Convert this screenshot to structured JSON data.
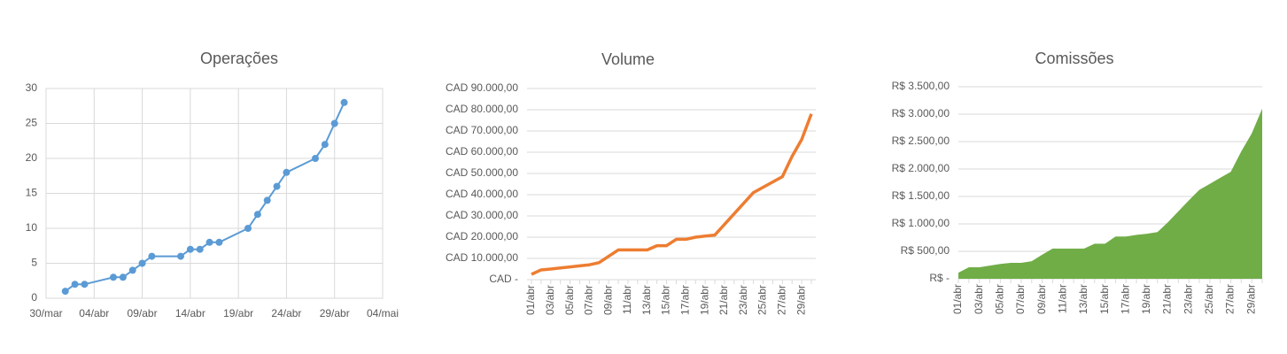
{
  "chart_data": [
    {
      "type": "line",
      "title": "Operações",
      "markers": true,
      "color": "#5b9bd5",
      "grid": true,
      "x": [
        "04-01",
        "04-02",
        "04-03",
        "04-06",
        "04-07",
        "04-08",
        "04-09",
        "04-10",
        "04-13",
        "04-14",
        "04-15",
        "04-16",
        "04-17",
        "04-20",
        "04-21",
        "04-22",
        "04-23",
        "04-24",
        "04-27",
        "04-28",
        "04-29",
        "04-30"
      ],
      "values": [
        1,
        2,
        2,
        3,
        3,
        4,
        5,
        6,
        6,
        7,
        7,
        8,
        8,
        10,
        12,
        14,
        16,
        18,
        20,
        22,
        25,
        28
      ],
      "xlim": [
        "03-30",
        "05-04"
      ],
      "xticks": [
        {
          "value": "03-30",
          "label": "30/mar"
        },
        {
          "value": "04-04",
          "label": "04/abr"
        },
        {
          "value": "04-09",
          "label": "09/abr"
        },
        {
          "value": "04-14",
          "label": "14/abr"
        },
        {
          "value": "04-19",
          "label": "19/abr"
        },
        {
          "value": "04-24",
          "label": "24/abr"
        },
        {
          "value": "04-29",
          "label": "29/abr"
        },
        {
          "value": "05-04",
          "label": "04/mai"
        }
      ],
      "ylim": [
        0,
        30
      ],
      "yticks": [
        0,
        5,
        10,
        15,
        20,
        25,
        30
      ]
    },
    {
      "type": "line",
      "title": "Volume",
      "color": "#ed7d31",
      "grid": true,
      "categories": [
        "01/abr",
        null,
        "03/abr",
        null,
        "05/abr",
        null,
        "07/abr",
        null,
        "09/abr",
        null,
        "11/abr",
        null,
        "13/abr",
        null,
        "15/abr",
        null,
        "17/abr",
        null,
        "19/abr",
        null,
        "21/abr",
        null,
        "23/abr",
        null,
        "25/abr",
        null,
        "27/abr",
        null,
        "29/abr",
        null
      ],
      "values": [
        2500,
        4600,
        5000,
        5500,
        6000,
        6500,
        7000,
        8000,
        11000,
        14000,
        14000,
        14000,
        14000,
        16000,
        16000,
        19000,
        19000,
        20000,
        20500,
        21000,
        26000,
        31000,
        36000,
        41000,
        43500,
        46000,
        48500,
        58000,
        66000,
        78000
      ],
      "ylim": [
        0,
        90000
      ],
      "yticks": [
        {
          "value": 0,
          "label": "CAD -"
        },
        {
          "value": 10000,
          "label": "CAD 10.000,00"
        },
        {
          "value": 20000,
          "label": "CAD 20.000,00"
        },
        {
          "value": 30000,
          "label": "CAD 30.000,00"
        },
        {
          "value": 40000,
          "label": "CAD 40.000,00"
        },
        {
          "value": 50000,
          "label": "CAD 50.000,00"
        },
        {
          "value": 60000,
          "label": "CAD 60.000,00"
        },
        {
          "value": 70000,
          "label": "CAD 70.000,00"
        },
        {
          "value": 80000,
          "label": "CAD 80.000,00"
        },
        {
          "value": 90000,
          "label": "CAD 90.000,00"
        }
      ]
    },
    {
      "type": "area",
      "title": "Comissões",
      "color": "#70ad47",
      "grid": true,
      "categories": [
        "01/abr",
        null,
        "03/abr",
        null,
        "05/abr",
        null,
        "07/abr",
        null,
        "09/abr",
        null,
        "11/abr",
        null,
        "13/abr",
        null,
        "15/abr",
        null,
        "17/abr",
        null,
        "19/abr",
        null,
        "21/abr",
        null,
        "23/abr",
        null,
        "25/abr",
        null,
        "27/abr",
        null,
        "29/abr",
        null
      ],
      "values": [
        110,
        210,
        210,
        240,
        270,
        290,
        290,
        320,
        440,
        550,
        550,
        550,
        550,
        640,
        640,
        770,
        770,
        800,
        820,
        850,
        1030,
        1230,
        1430,
        1620,
        1730,
        1840,
        1950,
        2320,
        2650,
        3100
      ],
      "ylim": [
        0,
        3500
      ],
      "yticks": [
        {
          "value": 0,
          "label": "R$ -"
        },
        {
          "value": 500,
          "label": "R$ 500,00"
        },
        {
          "value": 1000,
          "label": "R$ 1.000,00"
        },
        {
          "value": 1500,
          "label": "R$ 1.500,00"
        },
        {
          "value": 2000,
          "label": "R$ 2.000,00"
        },
        {
          "value": 2500,
          "label": "R$ 2.500,00"
        },
        {
          "value": 3000,
          "label": "R$ 3.000,00"
        },
        {
          "value": 3500,
          "label": "R$ 3.500,00"
        }
      ]
    }
  ]
}
